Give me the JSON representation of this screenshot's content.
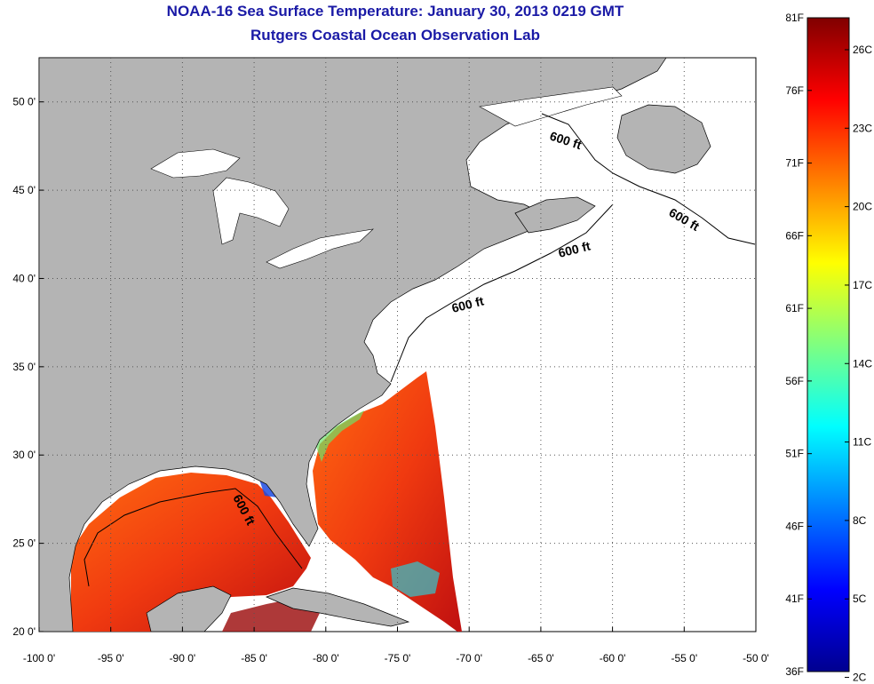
{
  "title": "NOAA-16 Sea Surface Temperature:  January 30, 2013 0219 GMT",
  "subtitle": "Rutgers Coastal Ocean Observation Lab",
  "map": {
    "lon_range": [
      -100,
      -50
    ],
    "lat_range": [
      20,
      52.5
    ],
    "lon_ticks": [
      {
        "value": -100,
        "label": "-100 0'"
      },
      {
        "value": -95,
        "label": "-95 0'"
      },
      {
        "value": -90,
        "label": "-90 0'"
      },
      {
        "value": -85,
        "label": "-85 0'"
      },
      {
        "value": -80,
        "label": "-80 0'"
      },
      {
        "value": -75,
        "label": "-75 0'"
      },
      {
        "value": -70,
        "label": "-70 0'"
      },
      {
        "value": -65,
        "label": "-65 0'"
      },
      {
        "value": -60,
        "label": "-60 0'"
      },
      {
        "value": -55,
        "label": "-55 0'"
      },
      {
        "value": -50,
        "label": "-50 0'"
      }
    ],
    "lat_ticks": [
      {
        "value": 20,
        "label": "20 0'"
      },
      {
        "value": 25,
        "label": "25 0'"
      },
      {
        "value": 30,
        "label": "30 0'"
      },
      {
        "value": 35,
        "label": "35 0'"
      },
      {
        "value": 40,
        "label": "40 0'"
      },
      {
        "value": 45,
        "label": "45 0'"
      },
      {
        "value": 50,
        "label": "50 0'"
      }
    ],
    "isobath_labels": [
      "600 ft",
      "600 ft",
      "600 ft",
      "600 ft",
      "600 ft"
    ],
    "colors": {
      "land": "#b4b4b4",
      "no_data": "#ffffff",
      "grid": "#555555"
    }
  },
  "colorbar": {
    "fahrenheit": [
      "81F",
      "76F",
      "71F",
      "66F",
      "61F",
      "56F",
      "51F",
      "46F",
      "41F",
      "36F"
    ],
    "celsius": [
      "26C",
      "23C",
      "20C",
      "17C",
      "14C",
      "11C",
      "8C",
      "5C",
      "2C"
    ],
    "range_f": [
      36,
      81
    ]
  }
}
